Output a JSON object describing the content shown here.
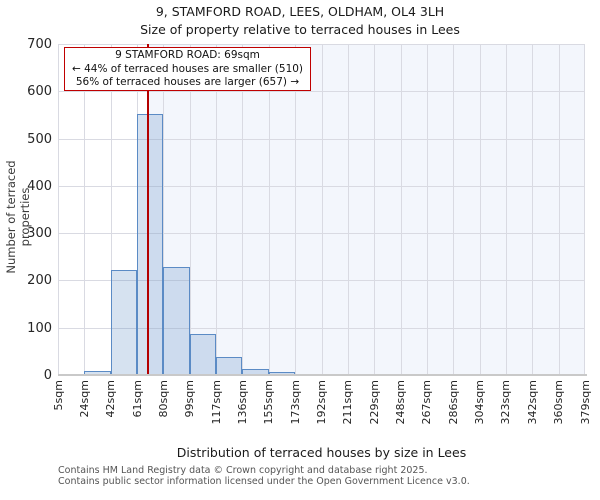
{
  "title": "9, STAMFORD ROAD, LEES, OLDHAM, OL4 3LH",
  "subtitle": "Size of property relative to terraced houses in Lees",
  "annotation": {
    "line1": "9 STAMFORD ROAD: 69sqm",
    "line2": "← 44% of terraced houses are smaller (510)",
    "line3": "56% of terraced houses are larger (657) →"
  },
  "footer": {
    "line1": "Contains HM Land Registry data © Crown copyright and database right 2025.",
    "line2": "Contains public sector information licensed under the Open Government Licence v3.0."
  },
  "chart_data": {
    "type": "bar",
    "title": "9, STAMFORD ROAD, LEES, OLDHAM, OL4 3LH",
    "subtitle": "Size of property relative to terraced houses in Lees",
    "xlabel": "Distribution of terraced houses by size in Lees",
    "ylabel": "Number of terraced properties",
    "x_tick_labels": [
      "5sqm",
      "24sqm",
      "42sqm",
      "61sqm",
      "80sqm",
      "99sqm",
      "117sqm",
      "136sqm",
      "155sqm",
      "173sqm",
      "192sqm",
      "211sqm",
      "229sqm",
      "248sqm",
      "267sqm",
      "286sqm",
      "304sqm",
      "323sqm",
      "342sqm",
      "360sqm",
      "379sqm"
    ],
    "bin_edges_sqm": [
      5,
      24,
      42,
      61,
      80,
      99,
      117,
      136,
      155,
      173,
      192,
      211,
      229,
      248,
      267,
      286,
      304,
      323,
      342,
      360,
      379
    ],
    "values": [
      0,
      8,
      222,
      553,
      228,
      87,
      39,
      12,
      6,
      2,
      0,
      0,
      0,
      0,
      0,
      0,
      0,
      0,
      0,
      0
    ],
    "ylim": [
      0,
      700
    ],
    "y_ticks": [
      0,
      100,
      200,
      300,
      400,
      500,
      600,
      700
    ],
    "marker_value_sqm": 69,
    "marker_label": "9 STAMFORD ROAD: 69sqm",
    "smaller_pct": "44%",
    "smaller_count": 510,
    "larger_pct": "56%",
    "larger_count": 657,
    "grid": true,
    "colors": {
      "bar_fill": "rgba(91,139,197,0.25)",
      "bar_edge": "#5b8bc5",
      "marker_line": "#b40000",
      "annotation_border": "#c00000",
      "shade_region": "#f3f6fc",
      "gridline": "#d9dae2"
    }
  }
}
